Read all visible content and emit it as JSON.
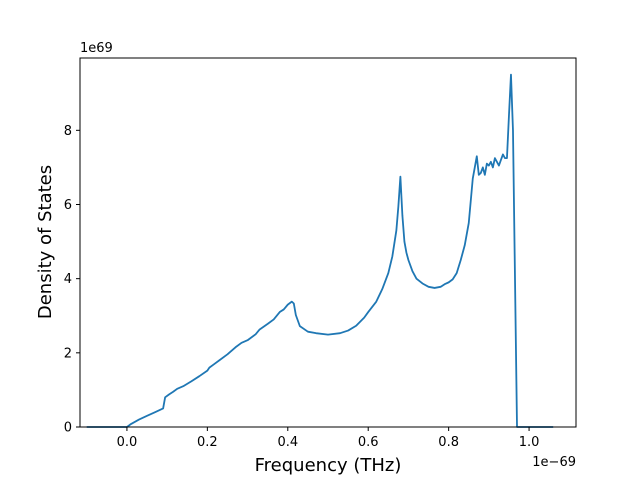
{
  "chart_data": {
    "type": "line",
    "title": "",
    "xlabel": "Frequency (THz)",
    "ylabel": "Density of States",
    "x_offset_text": "1e−69",
    "y_offset_text": "1e69",
    "xlim": [
      -0.1167,
      1.1167
    ],
    "ylim": [
      0,
      9.95
    ],
    "xticks": [
      {
        "value": 0.0,
        "label": "0.0"
      },
      {
        "value": 0.2,
        "label": "0.2"
      },
      {
        "value": 0.4,
        "label": "0.4"
      },
      {
        "value": 0.6,
        "label": "0.6"
      },
      {
        "value": 0.8,
        "label": "0.8"
      },
      {
        "value": 1.0,
        "label": "1.0"
      }
    ],
    "yticks": [
      {
        "value": 0,
        "label": "0"
      },
      {
        "value": 2,
        "label": "2"
      },
      {
        "value": 4,
        "label": "4"
      },
      {
        "value": 6,
        "label": "6"
      },
      {
        "value": 8,
        "label": "8"
      }
    ],
    "grid": false,
    "line_color": "#1f77b4",
    "series": [
      {
        "x": [
          -0.1,
          0.0,
          0.01,
          0.03,
          0.05,
          0.07,
          0.09,
          0.095,
          0.105,
          0.115,
          0.125,
          0.14,
          0.16,
          0.18,
          0.2,
          0.205,
          0.215,
          0.23,
          0.25,
          0.27,
          0.285,
          0.3,
          0.32,
          0.33,
          0.35,
          0.365,
          0.38,
          0.39,
          0.4,
          0.41,
          0.415,
          0.42,
          0.43,
          0.45,
          0.47,
          0.5,
          0.53,
          0.55,
          0.57,
          0.59,
          0.6,
          0.62,
          0.635,
          0.65,
          0.66,
          0.67,
          0.675,
          0.68,
          0.685,
          0.69,
          0.695,
          0.7,
          0.71,
          0.72,
          0.735,
          0.75,
          0.765,
          0.78,
          0.79,
          0.8,
          0.81,
          0.82,
          0.83,
          0.84,
          0.85,
          0.86,
          0.87,
          0.875,
          0.88,
          0.885,
          0.89,
          0.895,
          0.9,
          0.905,
          0.91,
          0.915,
          0.92,
          0.925,
          0.93,
          0.935,
          0.94,
          0.945,
          0.95,
          0.955,
          0.96,
          0.97,
          1.0,
          1.06
        ],
        "y": [
          0,
          0,
          0.08,
          0.2,
          0.3,
          0.4,
          0.5,
          0.8,
          0.88,
          0.95,
          1.03,
          1.1,
          1.23,
          1.37,
          1.52,
          1.6,
          1.68,
          1.8,
          1.96,
          2.15,
          2.27,
          2.34,
          2.5,
          2.63,
          2.78,
          2.9,
          3.1,
          3.17,
          3.3,
          3.38,
          3.33,
          3.02,
          2.72,
          2.57,
          2.53,
          2.49,
          2.53,
          2.6,
          2.73,
          2.95,
          3.1,
          3.38,
          3.72,
          4.15,
          4.6,
          5.3,
          5.95,
          6.75,
          5.7,
          5.0,
          4.7,
          4.5,
          4.2,
          4.0,
          3.87,
          3.78,
          3.75,
          3.78,
          3.85,
          3.9,
          3.98,
          4.15,
          4.5,
          4.9,
          5.5,
          6.7,
          7.3,
          6.8,
          6.85,
          7.0,
          6.8,
          7.1,
          7.05,
          7.15,
          7.0,
          7.25,
          7.15,
          7.05,
          7.2,
          7.35,
          7.25,
          7.25,
          8.4,
          9.5,
          8.0,
          0,
          0,
          0
        ]
      }
    ]
  }
}
